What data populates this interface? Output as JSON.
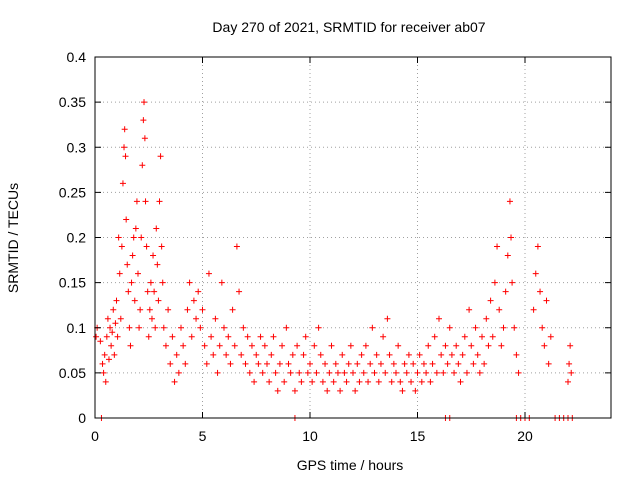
{
  "chart_data": {
    "type": "scatter",
    "title": "Day 270 of 2021, SRMTID for receiver ab07",
    "xlabel": "GPS time / hours",
    "ylabel": "SRMTID / TECUs",
    "xlim": [
      0,
      24
    ],
    "ylim": [
      0,
      0.4
    ],
    "x_ticks": [
      0,
      5,
      10,
      15,
      20
    ],
    "y_ticks": [
      0,
      0.05,
      0.1,
      0.15,
      0.2,
      0.25,
      0.3,
      0.35,
      0.4
    ],
    "x_tick_labels": [
      "0",
      "5",
      "10",
      "15",
      "20"
    ],
    "y_tick_labels": [
      "0",
      "0.05",
      "0.1",
      "0.15",
      "0.2",
      "0.25",
      "0.3",
      "0.35",
      "0.4"
    ],
    "grid": true,
    "marker": "+",
    "color": "#ff0000",
    "series": [
      {
        "name": "SRMTID",
        "points": [
          [
            0.05,
            0.09
          ],
          [
            0.1,
            0.1
          ],
          [
            0.25,
            0.085
          ],
          [
            0.35,
            0.06
          ],
          [
            0.4,
            0.05
          ],
          [
            0.45,
            0.07
          ],
          [
            0.5,
            0.04
          ],
          [
            0.55,
            0.09
          ],
          [
            0.6,
            0.11
          ],
          [
            0.65,
            0.065
          ],
          [
            0.7,
            0.1
          ],
          [
            0.75,
            0.08
          ],
          [
            0.8,
            0.095
          ],
          [
            0.85,
            0.12
          ],
          [
            0.9,
            0.07
          ],
          [
            0.95,
            0.105
          ],
          [
            1.0,
            0.13
          ],
          [
            1.05,
            0.09
          ],
          [
            1.1,
            0.2
          ],
          [
            1.15,
            0.16
          ],
          [
            1.2,
            0.11
          ],
          [
            1.25,
            0.19
          ],
          [
            1.3,
            0.26
          ],
          [
            1.35,
            0.3
          ],
          [
            1.38,
            0.32
          ],
          [
            1.42,
            0.29
          ],
          [
            1.45,
            0.22
          ],
          [
            1.5,
            0.17
          ],
          [
            1.55,
            0.14
          ],
          [
            1.6,
            0.1
          ],
          [
            1.65,
            0.08
          ],
          [
            1.7,
            0.15
          ],
          [
            1.75,
            0.18
          ],
          [
            1.8,
            0.2
          ],
          [
            1.85,
            0.13
          ],
          [
            1.9,
            0.21
          ],
          [
            1.95,
            0.24
          ],
          [
            2.0,
            0.16
          ],
          [
            2.05,
            0.1
          ],
          [
            2.1,
            0.12
          ],
          [
            2.15,
            0.2
          ],
          [
            2.2,
            0.28
          ],
          [
            2.25,
            0.33
          ],
          [
            2.28,
            0.35
          ],
          [
            2.32,
            0.31
          ],
          [
            2.35,
            0.24
          ],
          [
            2.4,
            0.19
          ],
          [
            2.45,
            0.14
          ],
          [
            2.5,
            0.09
          ],
          [
            2.55,
            0.12
          ],
          [
            2.6,
            0.15
          ],
          [
            2.65,
            0.11
          ],
          [
            2.7,
            0.18
          ],
          [
            2.75,
            0.14
          ],
          [
            2.8,
            0.1
          ],
          [
            2.85,
            0.21
          ],
          [
            2.9,
            0.17
          ],
          [
            2.95,
            0.13
          ],
          [
            3.0,
            0.24
          ],
          [
            3.05,
            0.29
          ],
          [
            3.1,
            0.19
          ],
          [
            3.15,
            0.15
          ],
          [
            3.2,
            0.1
          ],
          [
            3.3,
            0.08
          ],
          [
            3.4,
            0.12
          ],
          [
            3.5,
            0.06
          ],
          [
            3.6,
            0.09
          ],
          [
            3.7,
            0.04
          ],
          [
            3.8,
            0.07
          ],
          [
            3.9,
            0.05
          ],
          [
            4.0,
            0.1
          ],
          [
            4.1,
            0.08
          ],
          [
            4.2,
            0.06
          ],
          [
            4.3,
            0.12
          ],
          [
            4.4,
            0.15
          ],
          [
            4.5,
            0.09
          ],
          [
            4.6,
            0.13
          ],
          [
            4.7,
            0.11
          ],
          [
            4.8,
            0.14
          ],
          [
            4.9,
            0.1
          ],
          [
            5.0,
            0.12
          ],
          [
            5.1,
            0.08
          ],
          [
            5.2,
            0.06
          ],
          [
            5.3,
            0.16
          ],
          [
            5.4,
            0.09
          ],
          [
            5.5,
            0.07
          ],
          [
            5.6,
            0.11
          ],
          [
            5.7,
            0.05
          ],
          [
            5.8,
            0.08
          ],
          [
            5.9,
            0.15
          ],
          [
            6.0,
            0.1
          ],
          [
            6.1,
            0.07
          ],
          [
            6.2,
            0.09
          ],
          [
            6.3,
            0.06
          ],
          [
            6.4,
            0.12
          ],
          [
            6.5,
            0.08
          ],
          [
            6.6,
            0.19
          ],
          [
            6.7,
            0.14
          ],
          [
            6.8,
            0.07
          ],
          [
            6.9,
            0.1
          ],
          [
            7.0,
            0.06
          ],
          [
            7.1,
            0.09
          ],
          [
            7.2,
            0.05
          ],
          [
            7.3,
            0.08
          ],
          [
            7.4,
            0.04
          ],
          [
            7.5,
            0.07
          ],
          [
            7.6,
            0.06
          ],
          [
            7.7,
            0.09
          ],
          [
            7.8,
            0.05
          ],
          [
            7.9,
            0.08
          ],
          [
            8.0,
            0.06
          ],
          [
            8.1,
            0.04
          ],
          [
            8.2,
            0.07
          ],
          [
            8.3,
            0.09
          ],
          [
            8.4,
            0.05
          ],
          [
            8.5,
            0.03
          ],
          [
            8.6,
            0.06
          ],
          [
            8.7,
            0.08
          ],
          [
            8.8,
            0.04
          ],
          [
            8.9,
            0.1
          ],
          [
            9.0,
            0.06
          ],
          [
            9.1,
            0.05
          ],
          [
            9.2,
            0.07
          ],
          [
            9.3,
            0.03
          ],
          [
            9.4,
            0.08
          ],
          [
            9.5,
            0.05
          ],
          [
            9.6,
            0.04
          ],
          [
            9.7,
            0.07
          ],
          [
            9.8,
            0.09
          ],
          [
            9.9,
            0.05
          ],
          [
            10.0,
            0.06
          ],
          [
            10.1,
            0.04
          ],
          [
            10.2,
            0.08
          ],
          [
            10.3,
            0.05
          ],
          [
            10.4,
            0.1
          ],
          [
            10.5,
            0.07
          ],
          [
            10.6,
            0.04
          ],
          [
            10.7,
            0.06
          ],
          [
            10.8,
            0.03
          ],
          [
            10.9,
            0.05
          ],
          [
            11.0,
            0.08
          ],
          [
            11.1,
            0.04
          ],
          [
            11.2,
            0.06
          ],
          [
            11.3,
            0.05
          ],
          [
            11.4,
            0.03
          ],
          [
            11.5,
            0.07
          ],
          [
            11.6,
            0.05
          ],
          [
            11.7,
            0.04
          ],
          [
            11.8,
            0.06
          ],
          [
            11.9,
            0.08
          ],
          [
            12.0,
            0.05
          ],
          [
            12.1,
            0.03
          ],
          [
            12.2,
            0.06
          ],
          [
            12.3,
            0.04
          ],
          [
            12.4,
            0.07
          ],
          [
            12.5,
            0.05
          ],
          [
            12.6,
            0.08
          ],
          [
            12.7,
            0.04
          ],
          [
            12.8,
            0.06
          ],
          [
            12.9,
            0.1
          ],
          [
            13.0,
            0.05
          ],
          [
            13.1,
            0.07
          ],
          [
            13.2,
            0.04
          ],
          [
            13.3,
            0.06
          ],
          [
            13.4,
            0.09
          ],
          [
            13.5,
            0.05
          ],
          [
            13.6,
            0.11
          ],
          [
            13.7,
            0.07
          ],
          [
            13.8,
            0.04
          ],
          [
            13.9,
            0.06
          ],
          [
            14.0,
            0.05
          ],
          [
            14.1,
            0.08
          ],
          [
            14.2,
            0.04
          ],
          [
            14.3,
            0.03
          ],
          [
            14.4,
            0.06
          ],
          [
            14.5,
            0.05
          ],
          [
            14.6,
            0.07
          ],
          [
            14.7,
            0.04
          ],
          [
            14.8,
            0.06
          ],
          [
            14.9,
            0.03
          ],
          [
            15.0,
            0.05
          ],
          [
            15.1,
            0.07
          ],
          [
            15.2,
            0.04
          ],
          [
            15.3,
            0.06
          ],
          [
            15.4,
            0.05
          ],
          [
            15.5,
            0.08
          ],
          [
            15.6,
            0.04
          ],
          [
            15.7,
            0.06
          ],
          [
            15.8,
            0.09
          ],
          [
            15.9,
            0.05
          ],
          [
            16.0,
            0.11
          ],
          [
            16.1,
            0.07
          ],
          [
            16.2,
            0.05
          ],
          [
            16.3,
            0.08
          ],
          [
            16.4,
            0.06
          ],
          [
            16.5,
            0.1
          ],
          [
            16.6,
            0.07
          ],
          [
            16.7,
            0.05
          ],
          [
            16.8,
            0.08
          ],
          [
            16.9,
            0.06
          ],
          [
            17.0,
            0.04
          ],
          [
            17.1,
            0.07
          ],
          [
            17.2,
            0.09
          ],
          [
            17.3,
            0.05
          ],
          [
            17.4,
            0.12
          ],
          [
            17.5,
            0.08
          ],
          [
            17.6,
            0.06
          ],
          [
            17.7,
            0.1
          ],
          [
            17.8,
            0.07
          ],
          [
            17.9,
            0.05
          ],
          [
            18.0,
            0.09
          ],
          [
            18.1,
            0.06
          ],
          [
            18.2,
            0.11
          ],
          [
            18.3,
            0.08
          ],
          [
            18.4,
            0.13
          ],
          [
            18.5,
            0.09
          ],
          [
            18.6,
            0.15
          ],
          [
            18.7,
            0.19
          ],
          [
            18.8,
            0.12
          ],
          [
            18.9,
            0.08
          ],
          [
            19.0,
            0.1
          ],
          [
            19.1,
            0.14
          ],
          [
            19.2,
            0.18
          ],
          [
            19.3,
            0.24
          ],
          [
            19.35,
            0.2
          ],
          [
            19.4,
            0.15
          ],
          [
            19.5,
            0.1
          ],
          [
            19.6,
            0.07
          ],
          [
            19.7,
            0.05
          ],
          [
            20.4,
            0.12
          ],
          [
            20.5,
            0.16
          ],
          [
            20.6,
            0.19
          ],
          [
            20.7,
            0.14
          ],
          [
            20.8,
            0.1
          ],
          [
            20.9,
            0.08
          ],
          [
            21.0,
            0.13
          ],
          [
            21.1,
            0.06
          ],
          [
            21.2,
            0.09
          ],
          [
            22.0,
            0.04
          ],
          [
            22.05,
            0.06
          ],
          [
            22.1,
            0.08
          ],
          [
            22.15,
            0.05
          ],
          [
            0.3,
            0.0
          ],
          [
            9.3,
            0.0
          ],
          [
            16.3,
            0.0
          ],
          [
            16.5,
            0.0
          ],
          [
            19.6,
            0.0
          ],
          [
            19.8,
            0.0
          ],
          [
            20.0,
            0.0
          ],
          [
            20.2,
            0.0
          ],
          [
            21.4,
            0.0
          ],
          [
            21.6,
            0.0
          ],
          [
            21.8,
            0.0
          ],
          [
            22.0,
            0.0
          ],
          [
            22.2,
            0.0
          ]
        ]
      }
    ]
  }
}
